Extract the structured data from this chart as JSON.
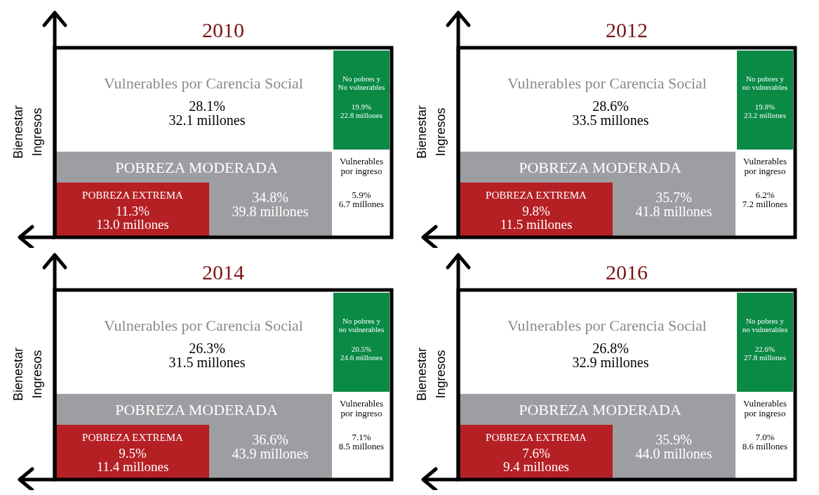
{
  "chart_data": [
    {
      "type": "other",
      "title": "2010",
      "ylabel": "Bienestar\nIngresos",
      "categories": [
        "Vulnerables por Carencia Social",
        "No pobres y\nNo vulnerables",
        "POBREZA MODERADA",
        "POBREZA EXTREMA",
        "Vulnerables\npor ingreso"
      ],
      "series": [
        {
          "colors": [
            "#ffffff",
            "#0a8a45",
            "#9d9ea2",
            "#b52025",
            "#ffffff"
          ],
          "values": [
            28.1,
            19.9,
            34.8,
            11.3,
            5.9
          ],
          "value_labels": [
            "28.1%",
            "19.9%",
            "34.8%",
            "11.3%",
            "5.9%"
          ]
        },
        {
          "values": [
            32.1,
            22.8,
            39.8,
            13.0,
            6.7
          ],
          "value_labels": [
            "32.1 millones",
            "22.8 millones",
            "39.8 millones",
            "13.0 millones",
            "6.7 millones"
          ]
        }
      ]
    },
    {
      "type": "other",
      "title": "2012",
      "ylabel": "Bienestar\nIngresos",
      "categories": [
        "Vulnerables por Carencia Social",
        "No pobres y\nno vulnerables",
        "POBREZA MODERADA",
        "POBREZA EXTREMA",
        "Vulnerables\npor ingreso"
      ],
      "series": [
        {
          "colors": [
            "#ffffff",
            "#0a8a45",
            "#9d9ea2",
            "#b52025",
            "#ffffff"
          ],
          "values": [
            28.6,
            19.8,
            35.7,
            9.8,
            6.2
          ],
          "value_labels": [
            "28.6%",
            "19.8%",
            "35.7%",
            "9.8%",
            "6.2%"
          ]
        },
        {
          "values": [
            33.5,
            23.2,
            41.8,
            11.5,
            7.2
          ],
          "value_labels": [
            "33.5 millones",
            "23.2 millones",
            "41.8 millones",
            "11.5 millones",
            "7.2 millones"
          ]
        }
      ]
    },
    {
      "type": "other",
      "title": "2014",
      "ylabel": "Bienestar\nIngresos",
      "categories": [
        "Vulnerables por Carencia Social",
        "No pobres y\nno vulnerables",
        "POBREZA MODERADA",
        "POBREZA EXTREMA",
        "Vulnerables\npor ingreso"
      ],
      "series": [
        {
          "colors": [
            "#ffffff",
            "#0a8a45",
            "#9d9ea2",
            "#b52025",
            "#ffffff"
          ],
          "values": [
            26.3,
            20.5,
            36.6,
            9.5,
            7.1
          ],
          "value_labels": [
            "26.3%",
            "20.5%",
            "36.6%",
            "9.5%",
            "7.1%"
          ]
        },
        {
          "values": [
            31.5,
            24.6,
            43.9,
            11.4,
            8.5
          ],
          "value_labels": [
            "31.5 millones",
            "24.6 millones",
            "43.9 millones",
            "11.4 millones",
            "8.5 millones"
          ]
        }
      ]
    },
    {
      "type": "other",
      "title": "2016",
      "ylabel": "Bienestar\nIngresos",
      "categories": [
        "Vulnerables por Carencia Social",
        "No pobres y\nno vulnerables",
        "POBREZA MODERADA",
        "POBREZA EXTREMA",
        "Vulnerables\npor ingreso"
      ],
      "series": [
        {
          "colors": [
            "#ffffff",
            "#0a8a45",
            "#9d9ea2",
            "#b52025",
            "#ffffff"
          ],
          "values": [
            26.8,
            22.6,
            35.9,
            7.6,
            7.0
          ],
          "value_labels": [
            "26.8%",
            "22.6%",
            "35.9%",
            "7.6%",
            "7.0%"
          ]
        },
        {
          "values": [
            32.9,
            27.8,
            44.0,
            9.4,
            8.6
          ],
          "value_labels": [
            "32.9 millones",
            "27.8 millones",
            "44.0 millones",
            "9.4 millones",
            "8.6 millones"
          ]
        }
      ]
    }
  ]
}
